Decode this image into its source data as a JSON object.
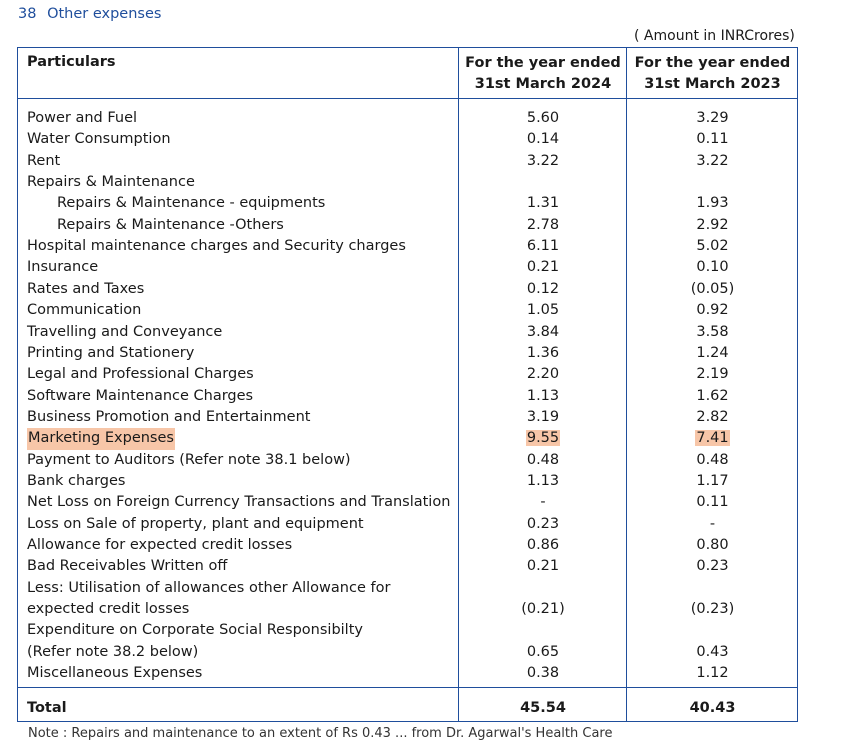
{
  "heading": {
    "number": "38",
    "title": "Other expenses"
  },
  "unit_note": "( Amount in INRCrores)",
  "columns": {
    "particulars": "Particulars",
    "col1_line1": "For the year ended",
    "col1_line2": "31st March 2024",
    "col2_line1": "For the year ended",
    "col2_line2": "31st March 2023"
  },
  "rows": [
    {
      "label": "Power and Fuel",
      "v2024": "5.60",
      "v2023": "3.29"
    },
    {
      "label": "Water Consumption",
      "v2024": "0.14",
      "v2023": "0.11"
    },
    {
      "label": "Rent",
      "v2024": "3.22",
      "v2023": "3.22"
    },
    {
      "label": "Repairs & Maintenance",
      "v2024": "",
      "v2023": ""
    },
    {
      "label": "Repairs & Maintenance - equipments",
      "v2024": "1.31",
      "v2023": "1.93",
      "indent": true
    },
    {
      "label": "Repairs & Maintenance -Others",
      "v2024": "2.78",
      "v2023": "2.92",
      "indent": true
    },
    {
      "label": "Hospital maintenance charges and Security charges",
      "v2024": "6.11",
      "v2023": "5.02"
    },
    {
      "label": "Insurance",
      "v2024": "0.21",
      "v2023": "0.10"
    },
    {
      "label": "Rates and Taxes",
      "v2024": "0.12",
      "v2023": "(0.05)"
    },
    {
      "label": "Communication",
      "v2024": "1.05",
      "v2023": "0.92"
    },
    {
      "label": "Travelling and Conveyance",
      "v2024": "3.84",
      "v2023": "3.58"
    },
    {
      "label": "Printing and Stationery",
      "v2024": "1.36",
      "v2023": "1.24"
    },
    {
      "label": "Legal and Professional Charges",
      "v2024": "2.20",
      "v2023": "2.19"
    },
    {
      "label": "Software Maintenance Charges",
      "v2024": "1.13",
      "v2023": "1.62"
    },
    {
      "label": "Business Promotion and Entertainment",
      "v2024": "3.19",
      "v2023": "2.82"
    },
    {
      "label": "Marketing Expenses",
      "v2024": "9.55",
      "v2023": "7.41",
      "highlight": true
    },
    {
      "label": "Payment to Auditors (Refer note 38.1 below)",
      "v2024": "0.48",
      "v2023": "0.48"
    },
    {
      "label": "Bank charges",
      "v2024": "1.13",
      "v2023": "1.17"
    },
    {
      "label": "Net Loss on Foreign Currency Transactions and Translation",
      "v2024": "-",
      "v2023": "0.11"
    },
    {
      "label": "Loss on Sale of property, plant and equipment",
      "v2024": "0.23",
      "v2023": "-"
    },
    {
      "label": "Allowance for expected credit losses",
      "v2024": "0.86",
      "v2023": "0.80"
    },
    {
      "label": "Bad Receivables Written off",
      "v2024": "0.21",
      "v2023": "0.23"
    },
    {
      "label": "Less: Utilisation of allowances other Allowance for",
      "v2024": "",
      "v2023": ""
    },
    {
      "label": "expected credit losses",
      "v2024": "(0.21)",
      "v2023": "(0.23)"
    },
    {
      "label": "Expenditure on Corporate Social Responsibilty",
      "v2024": "",
      "v2023": ""
    },
    {
      "label": "(Refer note 38.2 below)",
      "v2024": "0.65",
      "v2023": "0.43"
    },
    {
      "label": "Miscellaneous Expenses",
      "v2024": "0.38",
      "v2023": "1.12"
    }
  ],
  "total": {
    "label": "Total",
    "v2024": "45.54",
    "v2023": "40.43"
  },
  "footnote": "Note : Repairs and maintenance to an extent of Rs 0.43 ... from Dr. Agarwal's Health Care"
}
